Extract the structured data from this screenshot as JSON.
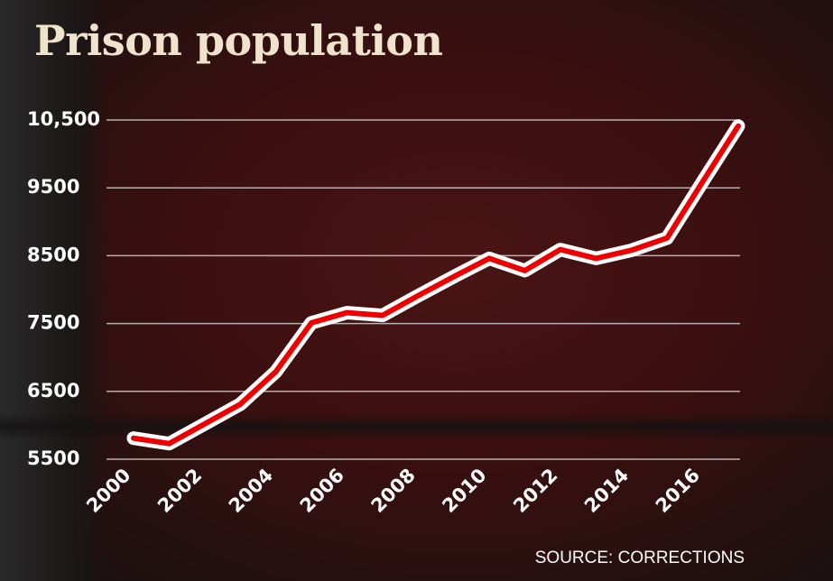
{
  "chart_data": {
    "type": "line",
    "title": "Prison population",
    "source": "SOURCE: CORRECTIONS",
    "x": [
      2000,
      2001,
      2002,
      2003,
      2004,
      2005,
      2006,
      2007,
      2008,
      2009,
      2010,
      2011,
      2012,
      2013,
      2014,
      2015,
      2016,
      2017
    ],
    "series": [
      {
        "values": [
          5810,
          5730,
          6020,
          6310,
          6790,
          7510,
          7660,
          7620,
          7910,
          8190,
          8460,
          8280,
          8590,
          8460,
          8580,
          8760,
          9590,
          10410
        ]
      }
    ],
    "yticks": [
      5500,
      6500,
      7500,
      8500,
      9500,
      10500
    ],
    "ytick_labels": [
      "5500",
      "6500",
      "7500",
      "8500",
      "9500",
      "10,500"
    ],
    "xtick_labels": [
      "2000",
      "2002",
      "2004",
      "2006",
      "2008",
      "2010",
      "2012",
      "2014",
      "2016"
    ],
    "ylim": [
      5500,
      10500
    ],
    "grid": true,
    "colors": {
      "line": "#ee0000",
      "outline": "#ffffff",
      "title": "#efe3cc"
    }
  }
}
